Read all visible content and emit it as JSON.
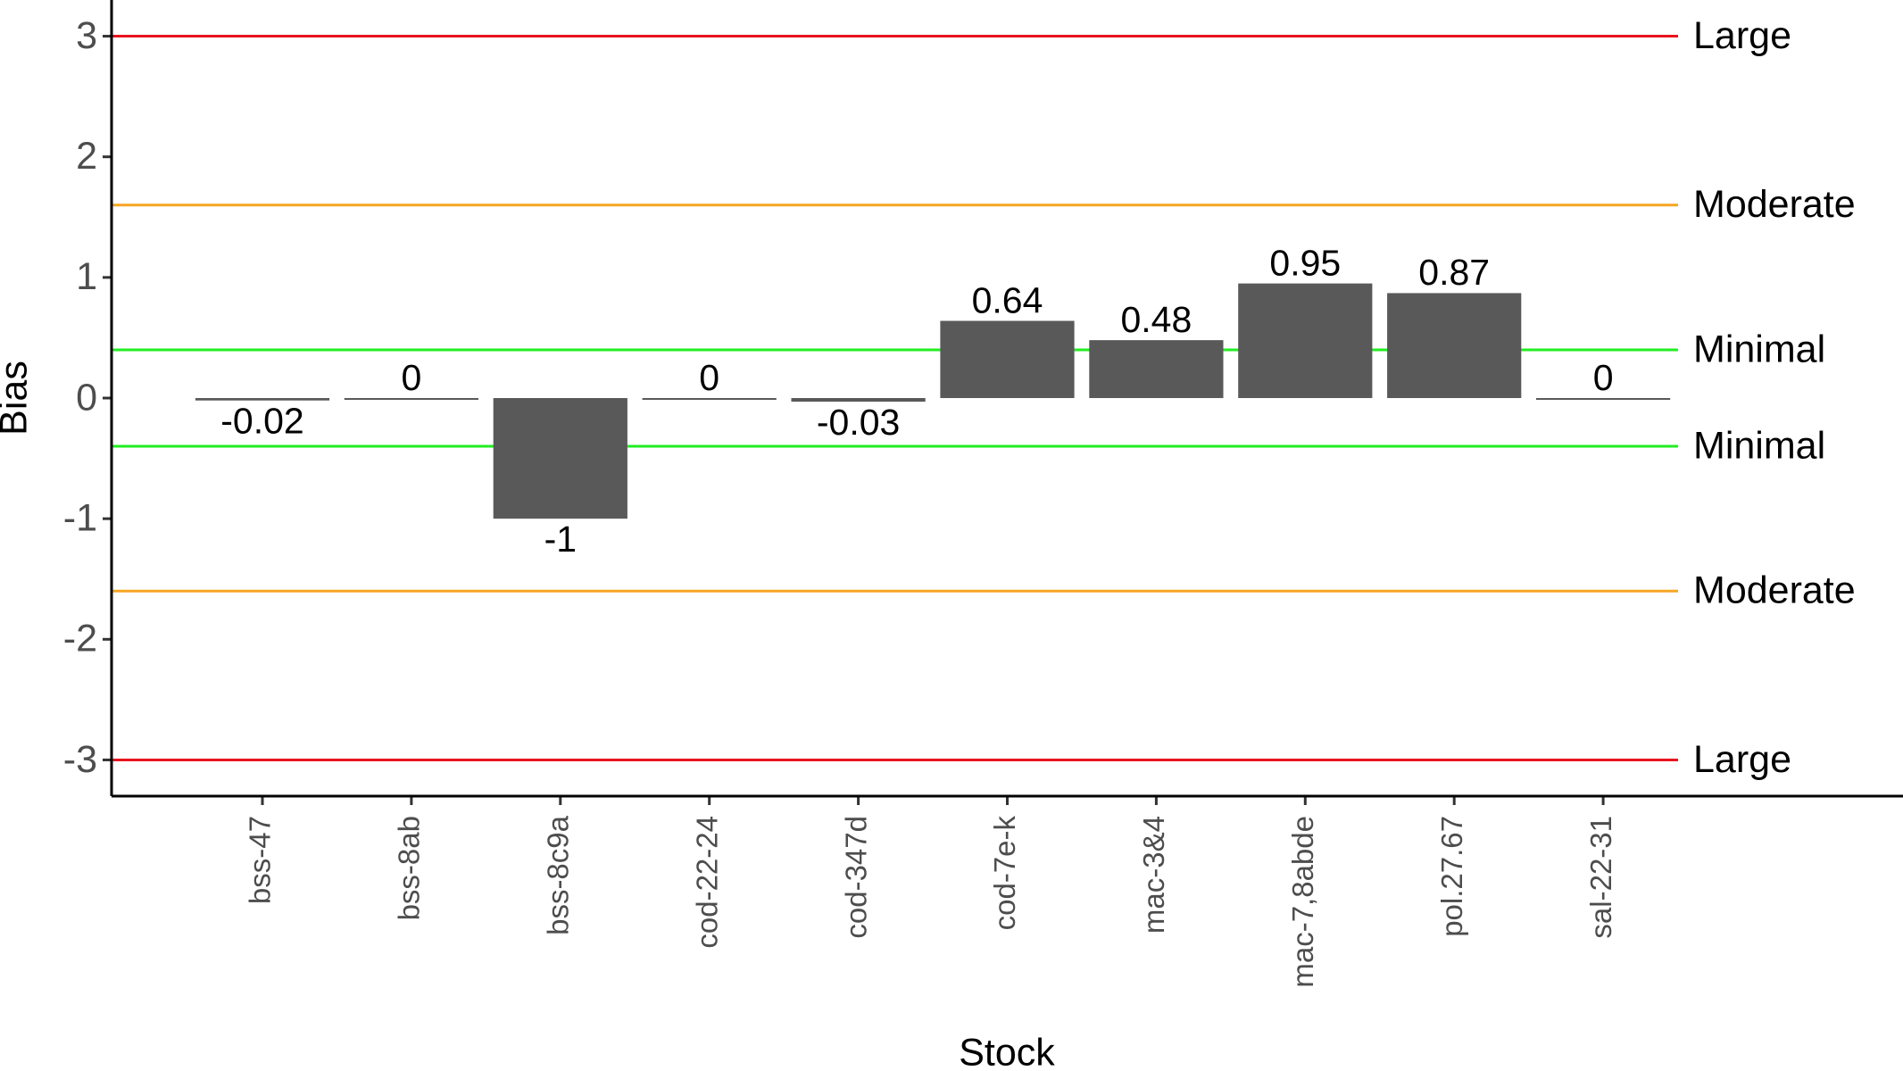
{
  "chart_data": {
    "type": "bar",
    "x_label": "Stock",
    "y_label": "Bias",
    "categories": [
      "bss-47",
      "bss-8ab",
      "bss-8c9a",
      "cod-22-24",
      "cod-347d",
      "cod-7e-k",
      "mac-3&4",
      "mac-7,8abde",
      "pol.27.67",
      "sal-22-31"
    ],
    "values": [
      -0.02,
      0,
      -1,
      0,
      -0.03,
      0.64,
      0.48,
      0.95,
      0.87,
      0
    ],
    "color": "#595959",
    "ylim": [
      -3.3,
      3.3
    ],
    "yticks": [
      -3,
      -2,
      -1,
      0,
      1,
      2,
      3
    ],
    "reference_lines": [
      {
        "value": 3,
        "label": "Large",
        "color": "#e8141e"
      },
      {
        "value": 1.6,
        "label": "Moderate",
        "color": "#f5a623"
      },
      {
        "value": 0.4,
        "label": "Minimal",
        "color": "#22ee22"
      },
      {
        "value": -0.4,
        "label": "Minimal",
        "color": "#22ee22"
      },
      {
        "value": -1.6,
        "label": "Moderate",
        "color": "#f5a623"
      },
      {
        "value": -3,
        "label": "Large",
        "color": "#e8141e"
      }
    ]
  }
}
